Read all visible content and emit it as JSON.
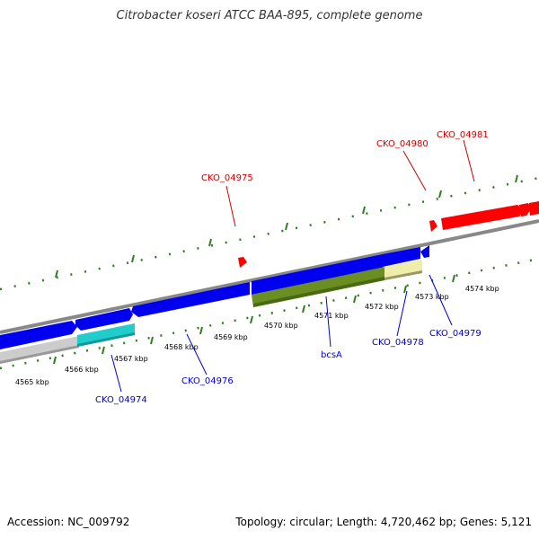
{
  "title": "Citrobacter koseri ATCC BAA-895, complete genome",
  "footer": {
    "accession": "Accession: NC_009792",
    "info": "Topology: circular; Length: 4,720,462 bp; Genes: 5,121"
  },
  "colors": {
    "forward_gene": "#ff0000",
    "reverse_gene": "#0000ee",
    "backbone": "#888888",
    "tick": "#2e7d1e",
    "cyan_feature": "#22cccc",
    "olive_feature": "#6b8e23",
    "pale_feature": "#eeeeaa",
    "gray_feature": "#cccccc"
  },
  "kbp_ticks": [
    "4565 kbp",
    "4566 kbp",
    "4567 kbp",
    "4568 kbp",
    "4569 kbp",
    "4570 kbp",
    "4571 kbp",
    "4572 kbp",
    "4573 kbp",
    "4574 kbp"
  ],
  "forward_labels": [
    "CKO_04975",
    "CKO_04980",
    "CKO_04981"
  ],
  "reverse_labels": [
    "CKO_04974",
    "CKO_04976",
    "bcsA",
    "CKO_04978",
    "CKO_04979"
  ]
}
